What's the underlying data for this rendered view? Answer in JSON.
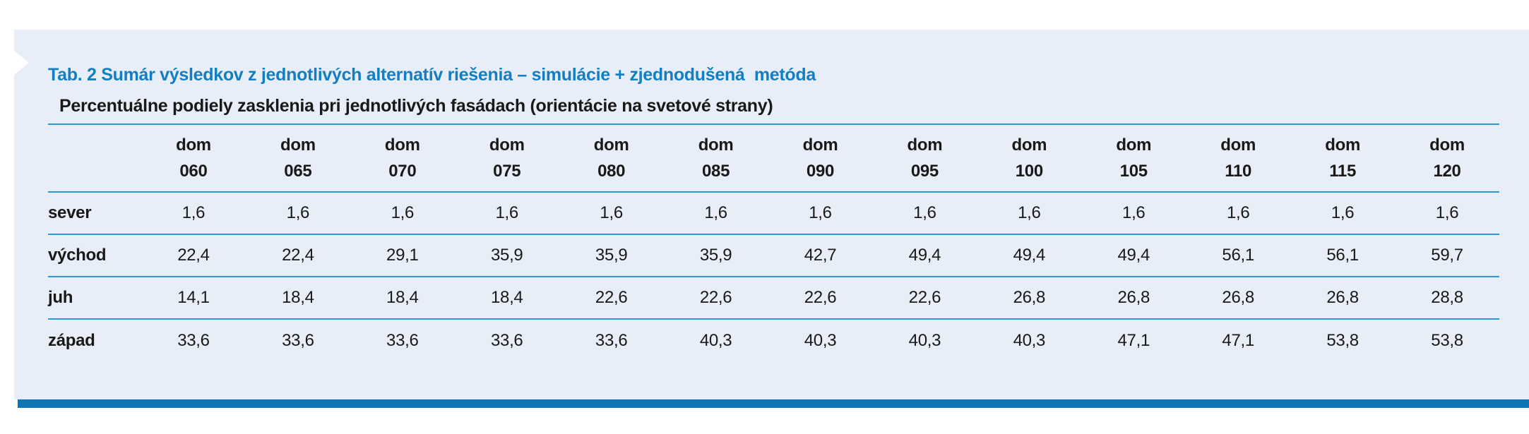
{
  "caption": "Tab. 2 Sumár výsledkov z jednotlivých alternatív riešenia – simulácie + zjednodušená  metóda",
  "subtitle": "Percentuálne podiely zasklenia pri jednotlivých fasádach (orientácie na svetové strany)",
  "table": {
    "column_header_prefix": "dom",
    "columns": [
      "060",
      "065",
      "070",
      "075",
      "080",
      "085",
      "090",
      "095",
      "100",
      "105",
      "110",
      "115",
      "120"
    ],
    "rows": [
      {
        "label": "sever",
        "values": [
          "1,6",
          "1,6",
          "1,6",
          "1,6",
          "1,6",
          "1,6",
          "1,6",
          "1,6",
          "1,6",
          "1,6",
          "1,6",
          "1,6",
          "1,6"
        ]
      },
      {
        "label": "východ",
        "values": [
          "22,4",
          "22,4",
          "29,1",
          "35,9",
          "35,9",
          "35,9",
          "42,7",
          "49,4",
          "49,4",
          "49,4",
          "56,1",
          "56,1",
          "59,7"
        ]
      },
      {
        "label": "juh",
        "values": [
          "14,1",
          "18,4",
          "18,4",
          "18,4",
          "22,6",
          "22,6",
          "22,6",
          "22,6",
          "26,8",
          "26,8",
          "26,8",
          "26,8",
          "28,8"
        ]
      },
      {
        "label": "západ",
        "values": [
          "33,6",
          "33,6",
          "33,6",
          "33,6",
          "33,6",
          "40,3",
          "40,3",
          "40,3",
          "40,3",
          "47,1",
          "47,1",
          "53,8",
          "53,8"
        ]
      }
    ]
  },
  "colors": {
    "panel_background": "#e8eef7",
    "caption_text": "#137ec2",
    "rule_line": "#2e96d4",
    "bottom_bar": "#0d76b5",
    "body_text": "#191919"
  }
}
